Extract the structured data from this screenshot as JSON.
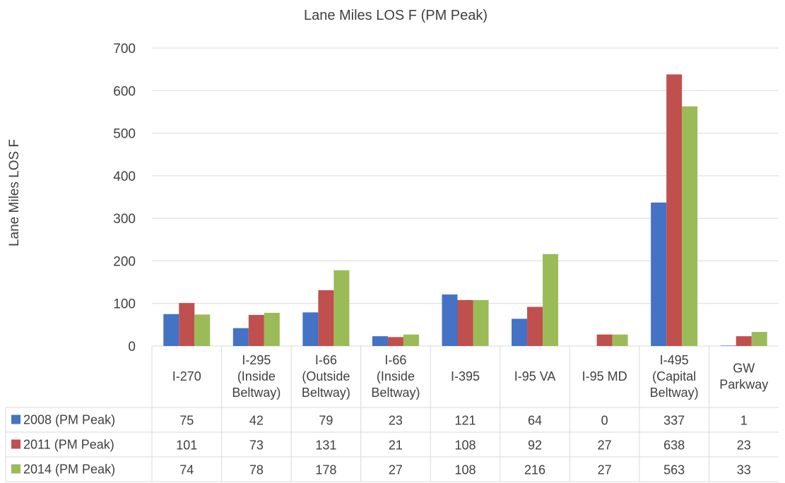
{
  "chart_data": {
    "type": "bar",
    "title": "Lane Miles LOS F (PM Peak)",
    "xlabel": "",
    "ylabel": "Lane Miles LOS F",
    "ylim": [
      0,
      700
    ],
    "yticks": [
      0,
      100,
      200,
      300,
      400,
      500,
      600,
      700
    ],
    "grid": true,
    "legend": "data-table",
    "categories": [
      [
        "I-270"
      ],
      [
        "I-295",
        "(Inside",
        "Beltway)"
      ],
      [
        "I-66",
        "(Outside",
        "Beltway)"
      ],
      [
        "I-66",
        "(Inside",
        "Beltway)"
      ],
      [
        "I-395"
      ],
      [
        "I-95 VA"
      ],
      [
        "I-95 MD"
      ],
      [
        "I-495",
        "(Capital",
        "Beltway)"
      ],
      [
        "GW",
        "Parkway"
      ]
    ],
    "series": [
      {
        "name": "2008 (PM Peak)",
        "color": "#4472C4",
        "values": [
          75,
          42,
          79,
          23,
          121,
          64,
          0,
          337,
          1
        ]
      },
      {
        "name": "2011 (PM Peak)",
        "color": "#C0504D",
        "values": [
          101,
          73,
          131,
          21,
          108,
          92,
          27,
          638,
          23
        ]
      },
      {
        "name": "2014 (PM Peak)",
        "color": "#9BBB59",
        "values": [
          74,
          78,
          178,
          27,
          108,
          216,
          27,
          563,
          33
        ]
      }
    ]
  }
}
